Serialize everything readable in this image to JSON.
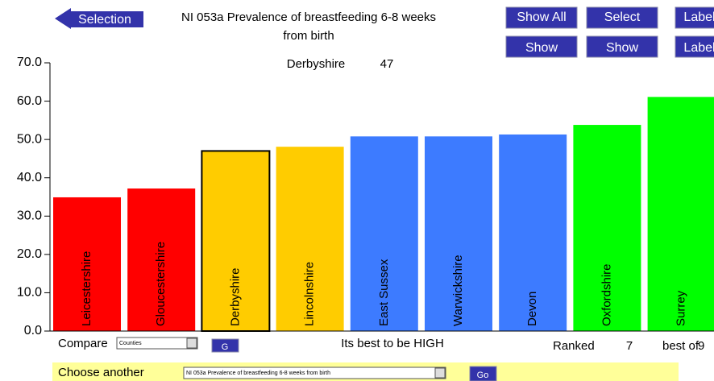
{
  "ui": {
    "back_button": "Selection",
    "title_line1": "NI 053a Prevalence of breastfeeding 6-8 weeks",
    "title_line2": "from birth",
    "buttons_row1": [
      "Show All",
      "Select",
      "Label"
    ],
    "buttons_row2": [
      "Show",
      "Show",
      "Label"
    ],
    "selected_name": "Derbyshire",
    "selected_value": "47",
    "compare_label": "Compare",
    "compare_select": "Counties",
    "compare_go": "G",
    "hint": "Its best to be HIGH",
    "ranked_label": "Ranked",
    "ranked_value": "7",
    "best_of": "best of",
    "best_of_count": "9",
    "choose_label": "Choose another",
    "choose_select": "NI 053a Prevalence of breastfeeding 6-8 weeks from birth",
    "choose_go": "Go"
  },
  "chart_data": {
    "type": "bar",
    "categories": [
      "Leicestershire",
      "Gloucestershire",
      "Derbyshire",
      "Lincolnshire",
      "East Sussex",
      "Warwickshire",
      "Devon",
      "Oxfordshire",
      "Surrey"
    ],
    "values": [
      34.9,
      37.2,
      47,
      48.1,
      50.8,
      50.8,
      51.3,
      53.8,
      61.1
    ],
    "colors": [
      "#ff0000",
      "#ff0000",
      "#ffcc00",
      "#ffcc00",
      "#3d7bff",
      "#3d7bff",
      "#3d7bff",
      "#00ff00",
      "#00ff00"
    ],
    "highlight": 2,
    "ylim": [
      0,
      70
    ],
    "yticks": [
      {
        "value": 0,
        "label": "0.0"
      },
      {
        "value": 10,
        "label": "10.0"
      },
      {
        "value": 20,
        "label": "20.0"
      },
      {
        "value": 30,
        "label": "30.0"
      },
      {
        "value": 40,
        "label": "40.0"
      },
      {
        "value": 50,
        "label": "50.0"
      },
      {
        "value": 60,
        "label": "60.0"
      },
      {
        "value": 70,
        "label": "70.0"
      }
    ]
  }
}
